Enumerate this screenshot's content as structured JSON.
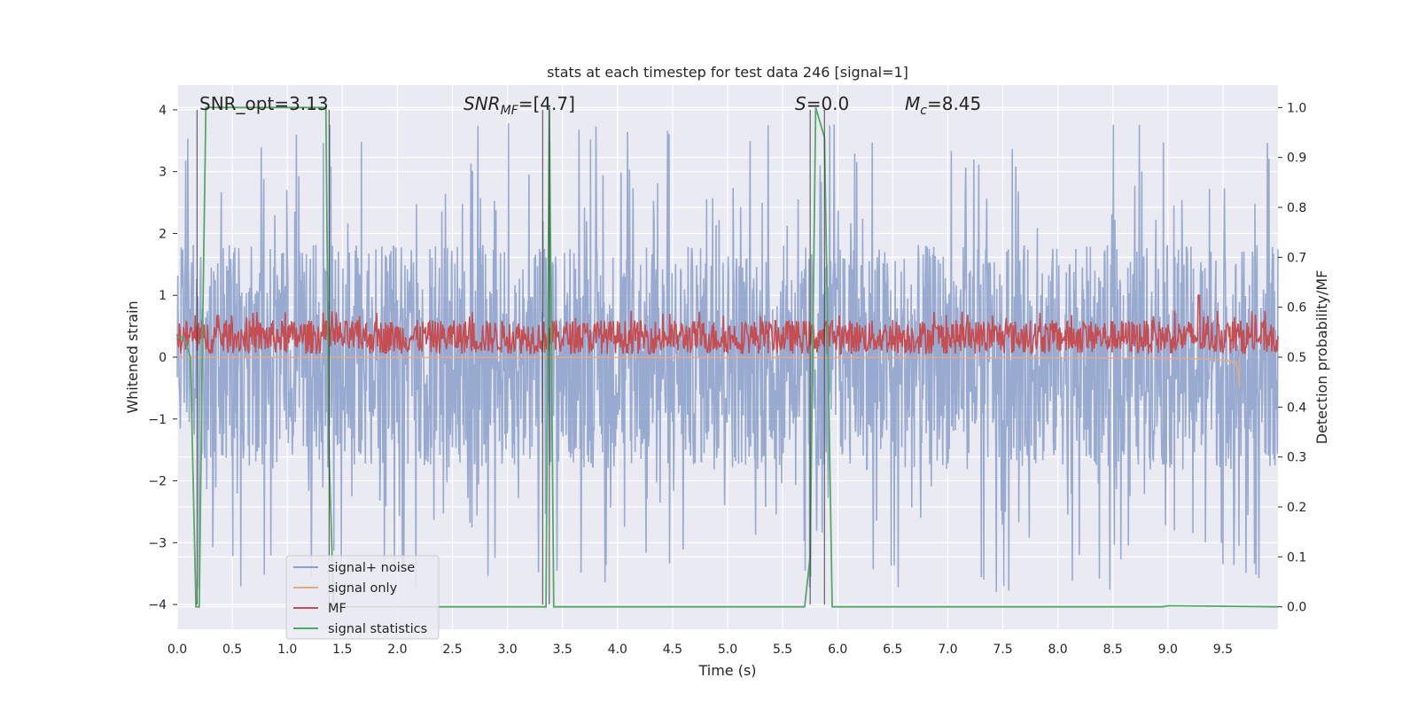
{
  "chart_data": {
    "type": "line",
    "title": "stats at each timestep for test data 246 [signal=1]",
    "xlabel": "Time (s)",
    "ylabel": "Whitened strain",
    "y2label": "Detection probability/MF",
    "xlim": [
      0.0,
      10.0
    ],
    "ylim": [
      -4.4,
      4.4
    ],
    "y2lim": [
      -0.045,
      1.045
    ],
    "x_ticks": [
      "0.0",
      "0.5",
      "1.0",
      "1.5",
      "2.0",
      "2.5",
      "3.0",
      "3.5",
      "4.0",
      "4.5",
      "5.0",
      "5.5",
      "6.0",
      "6.5",
      "7.0",
      "7.5",
      "8.0",
      "8.5",
      "9.0",
      "9.5"
    ],
    "y_ticks": [
      "4",
      "3",
      "2",
      "1",
      "0",
      "−1",
      "−2",
      "−3",
      "−4"
    ],
    "y2_ticks": [
      "1.0",
      "0.9",
      "0.8",
      "0.7",
      "0.6",
      "0.5",
      "0.4",
      "0.3",
      "0.2",
      "0.1",
      "0.0"
    ],
    "grid": true,
    "legend_position": "lower-left",
    "annotations": {
      "snr_opt": "SNR_opt=3.13",
      "snr_mf_sym": "SNR",
      "snr_mf_sub": "MF",
      "snr_mf_val": "=[4.7]",
      "s_sym": "S",
      "s_val": "=0.0",
      "mc_sym": "M",
      "mc_sub": "c",
      "mc_val": "=8.45"
    },
    "vertical_markers": [
      0.18,
      1.38,
      3.32,
      3.38,
      5.75,
      5.88
    ],
    "series": [
      {
        "name": "signal+ noise",
        "color": "#8da0cb",
        "axis": "left",
        "noise_amplitude": 1.4,
        "peak_range": [
          2.0,
          3.8
        ]
      },
      {
        "name": "signal only",
        "color": "#e5a987",
        "axis": "left",
        "chirp_end": 9.65,
        "chirp_min": -0.5
      },
      {
        "name": "MF",
        "color": "#c44e52",
        "axis": "left",
        "baseline": 0.05,
        "mean": 0.3,
        "max": 1.0
      },
      {
        "name": "signal statistics",
        "color": "#55a868",
        "axis": "right",
        "x": [
          0.0,
          0.06,
          0.12,
          0.17,
          0.2,
          0.23,
          0.26,
          1.35,
          1.38,
          1.42,
          1.8,
          3.3,
          3.35,
          3.38,
          3.42,
          5.7,
          5.75,
          5.8,
          5.88,
          5.95,
          8.95,
          9.0,
          10.0
        ],
        "y": [
          0.54,
          0.54,
          0.5,
          0.0,
          0.0,
          0.55,
          1.0,
          1.0,
          0.3,
          0.0,
          0.0,
          0.0,
          0.0,
          1.0,
          0.0,
          0.0,
          0.1,
          1.0,
          0.94,
          0.0,
          0.0,
          0.002,
          0.0
        ]
      }
    ]
  }
}
